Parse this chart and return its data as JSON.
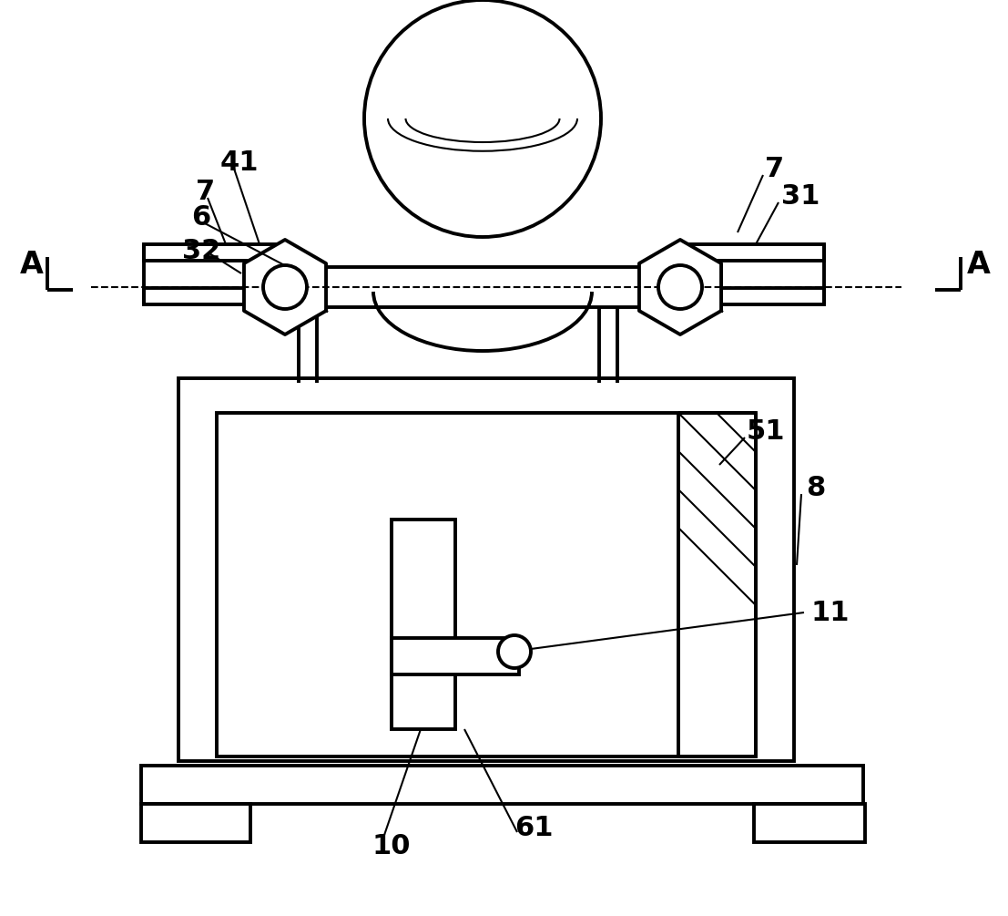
{
  "bg_color": "#ffffff",
  "line_color": "#000000",
  "fig_width": 11.07,
  "fig_height": 10.05,
  "lw_main": 2.8,
  "lw_thin": 1.5
}
